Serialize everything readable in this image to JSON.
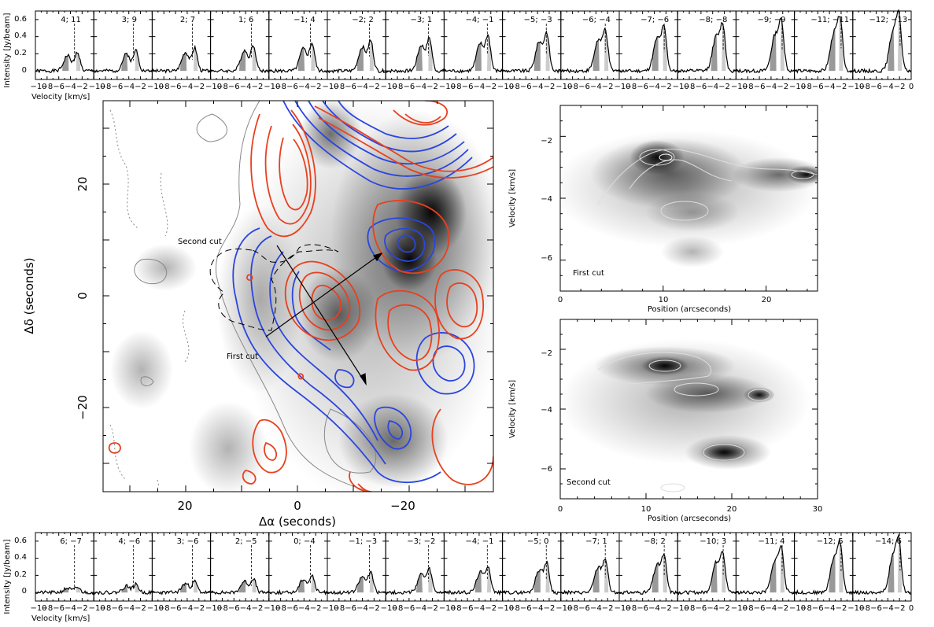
{
  "spectra_rows": [
    {
      "ylabel": "Intensity [Jy/beam]",
      "xlabel": "Velocity [km/s]",
      "xtick_labels": [
        "−10",
        "−8",
        "−6",
        "−4",
        "−2",
        "0"
      ],
      "ytick_labels": [
        "0",
        "0.2",
        "0.4",
        "0.6"
      ],
      "panel_labels": [
        "4; 11",
        "3; 9",
        "2; 7",
        "1; 6",
        "−1; 4",
        "−2; 2",
        "−3; 1",
        "−4; −1",
        "−5; −3",
        "−6; −4",
        "−7; −6",
        "−8; −8",
        "−9; −9",
        "−11; −11",
        "−12; −13"
      ]
    },
    {
      "ylabel": "Intensity [Jy/beam]",
      "xlabel": "Velocity [km/s]",
      "xtick_labels": [
        "−10",
        "−8",
        "−6",
        "−4",
        "−2",
        "0"
      ],
      "ytick_labels": [
        "0",
        "0.2",
        "0.4",
        "0.6"
      ],
      "panel_labels": [
        "6; −7",
        "4; −6",
        "3; −6",
        "2; −5",
        "0; −4",
        "−1; −3",
        "−3; −2",
        "−4; −1",
        "−5; 0",
        "−7; 1",
        "−8; 2",
        "−10; 3",
        "−11; 4",
        "−12; 5",
        "−14; 6"
      ]
    }
  ],
  "map": {
    "xlabel": "Δα (seconds)",
    "ylabel": "Δδ (seconds)",
    "xtick_labels": [
      "20",
      "0",
      "−20"
    ],
    "ytick_labels": [
      "20",
      "0",
      "−20"
    ],
    "cut_labels": [
      "Second cut",
      "First cut"
    ],
    "colors": {
      "red": "#e8401e",
      "blue": "#2a45e0",
      "gray": "#888888"
    }
  },
  "pv_panels": [
    {
      "label": "First cut",
      "xlabel": "Position (arcseconds)",
      "ylabel": "Velocity [km/s]",
      "xtick_labels": [
        "0",
        "10",
        "20"
      ],
      "ytick_labels": [
        "−2",
        "−4",
        "−6"
      ]
    },
    {
      "label": "Second cut",
      "xlabel": "Position (arcseconds)",
      "ylabel": "Velocity [km/s]",
      "xtick_labels": [
        "0",
        "10",
        "20",
        "30"
      ],
      "ytick_labels": [
        "−2",
        "−4",
        "−6"
      ]
    }
  ],
  "chart_data": [
    {
      "type": "line",
      "description_kind": "spectra",
      "x_range": [
        -10,
        0
      ],
      "ylim": [
        -0.1,
        0.7
      ]
    },
    {
      "type": "heatmap",
      "x_range": [
        35,
        -35
      ],
      "y_range": [
        -35,
        35
      ]
    },
    {
      "type": "heatmap",
      "x_range": [
        0,
        25
      ],
      "y_range": [
        -7,
        -1
      ]
    },
    {
      "type": "heatmap",
      "x_range": [
        0,
        30
      ],
      "y_range": [
        -7,
        -1
      ]
    }
  ]
}
